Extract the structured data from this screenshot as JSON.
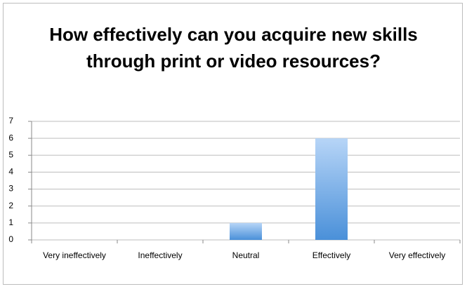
{
  "chart_data": {
    "type": "bar",
    "title": "How effectively can you acquire new skills through print or video resources?",
    "categories": [
      "Very ineffectively",
      "Ineffectively",
      "Neutral",
      "Effectively",
      "Very effectively"
    ],
    "values": [
      0,
      0,
      1,
      6,
      0
    ],
    "color": "#4a90d9",
    "ylim": [
      0,
      7
    ],
    "yticks": [
      0,
      1,
      2,
      3,
      4,
      5,
      6,
      7
    ],
    "grid": true
  }
}
